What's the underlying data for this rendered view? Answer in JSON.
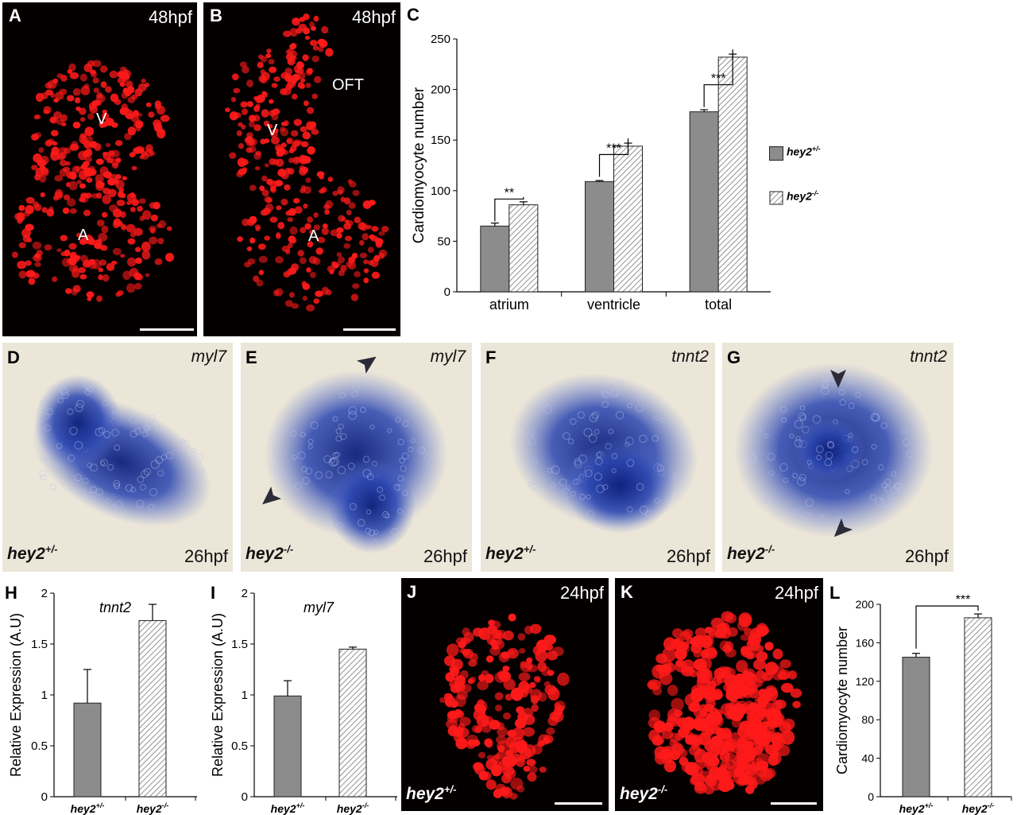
{
  "panels": {
    "A": {
      "label": "A",
      "time": "48hpf",
      "chamber_v": "V",
      "chamber_a": "A"
    },
    "B": {
      "label": "B",
      "time": "48hpf",
      "oft": "OFT",
      "chamber_v": "V",
      "chamber_a": "A"
    },
    "D": {
      "label": "D",
      "gene": "myl7",
      "genotype": "hey2",
      "genotype_sup": "+/-",
      "time": "26hpf"
    },
    "E": {
      "label": "E",
      "gene": "myl7",
      "genotype": "hey2",
      "genotype_sup": "-/-",
      "time": "26hpf"
    },
    "F": {
      "label": "F",
      "gene": "tnnt2",
      "genotype": "hey2",
      "genotype_sup": "+/-",
      "time": "26hpf"
    },
    "G": {
      "label": "G",
      "gene": "tnnt2",
      "genotype": "hey2",
      "genotype_sup": "-/-",
      "time": "26hpf"
    },
    "J": {
      "label": "J",
      "time": "24hpf",
      "genotype": "hey2",
      "genotype_sup": "+/-"
    },
    "K": {
      "label": "K",
      "time": "24hpf",
      "genotype": "hey2",
      "genotype_sup": "-/-"
    }
  },
  "colors": {
    "het_bar": "#8c8c8c",
    "nuclei": "#ff1a1a",
    "ish_stain": "#2a3f9e"
  },
  "chart_data": [
    {
      "panel": "C",
      "type": "bar",
      "ylabel": "Cardiomyocyte number",
      "ylim": [
        0,
        250
      ],
      "yticks": [
        0,
        50,
        100,
        150,
        200,
        250
      ],
      "categories": [
        "atrium",
        "ventricle",
        "total"
      ],
      "series": [
        {
          "name": "hey2",
          "sup": "+/-",
          "values": [
            65,
            109,
            178
          ],
          "errors": [
            3,
            1,
            2
          ]
        },
        {
          "name": "hey2",
          "sup": "-/-",
          "values": [
            86,
            144,
            232
          ],
          "errors": [
            3,
            3,
            3
          ]
        }
      ],
      "significance": [
        "**",
        "***",
        "***"
      ],
      "legend": "right"
    },
    {
      "panel": "H",
      "type": "bar",
      "title": "tnnt2",
      "ylabel": "Relative Expression (A.U)",
      "ylim": [
        0,
        2
      ],
      "yticks": [
        "0",
        "0.5",
        "1",
        "1.5",
        "2"
      ],
      "categories": [
        {
          "name": "hey2",
          "sup": "+/-"
        },
        {
          "name": "hey2",
          "sup": "-/-"
        }
      ],
      "values": [
        0.92,
        1.73
      ],
      "errors": [
        0.33,
        0.16
      ]
    },
    {
      "panel": "I",
      "type": "bar",
      "title": "myl7",
      "ylabel": "Relative Expression (A.U)",
      "ylim": [
        0,
        2
      ],
      "yticks": [
        "0",
        "0.5",
        "1",
        "1.5",
        "2"
      ],
      "categories": [
        {
          "name": "hey2",
          "sup": "+/-"
        },
        {
          "name": "hey2",
          "sup": "-/-"
        }
      ],
      "values": [
        0.99,
        1.45
      ],
      "errors": [
        0.15,
        0.02
      ]
    },
    {
      "panel": "L",
      "type": "bar",
      "ylabel": "Cardiomyocyte number",
      "ylim": [
        0,
        200
      ],
      "yticks": [
        "0",
        "40",
        "80",
        "120",
        "160",
        "200"
      ],
      "categories": [
        {
          "name": "hey2",
          "sup": "+/-"
        },
        {
          "name": "hey2",
          "sup": "-/-"
        }
      ],
      "values": [
        145,
        186
      ],
      "errors": [
        4,
        4
      ],
      "significance": "***"
    }
  ]
}
